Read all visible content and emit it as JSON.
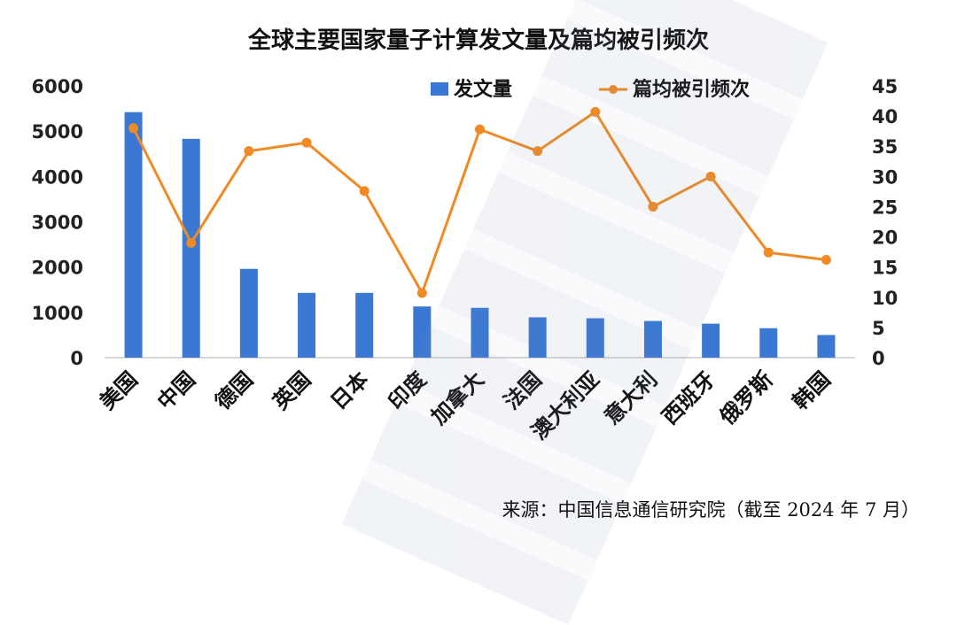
{
  "chart_data": {
    "type": "bar",
    "title": "全球主要国家量子计算发文量及篇均被引频次",
    "categories": [
      "美国",
      "中国",
      "德国",
      "英国",
      "日本",
      "印度",
      "加拿大",
      "法国",
      "澳大利亚",
      "意大利",
      "西班牙",
      "俄罗斯",
      "韩国"
    ],
    "series": [
      {
        "name": "发文量",
        "type": "bar",
        "axis": "left",
        "color": "#3a78d4",
        "values": [
          5420,
          4830,
          1960,
          1430,
          1430,
          1130,
          1100,
          890,
          870,
          810,
          750,
          650,
          500
        ]
      },
      {
        "name": "篇均被引频次",
        "type": "line",
        "axis": "right",
        "color": "#f08a24",
        "values": [
          38.0,
          19.0,
          34.2,
          35.6,
          27.6,
          10.7,
          37.8,
          34.2,
          40.7,
          25.0,
          30.0,
          17.4,
          16.2
        ]
      }
    ],
    "y_left": {
      "min": 0,
      "max": 6000,
      "ticks": [
        "0",
        "1000",
        "2000",
        "3000",
        "4000",
        "5000",
        "6000"
      ]
    },
    "y_right": {
      "min": 0,
      "max": 45,
      "ticks": [
        "0",
        "5",
        "10",
        "15",
        "20",
        "25",
        "30",
        "35",
        "40",
        "45"
      ]
    },
    "grid": false,
    "legend_position": "top-right"
  },
  "source_note": "来源：中国信息通信研究院（截至 2024 年 7 月）"
}
